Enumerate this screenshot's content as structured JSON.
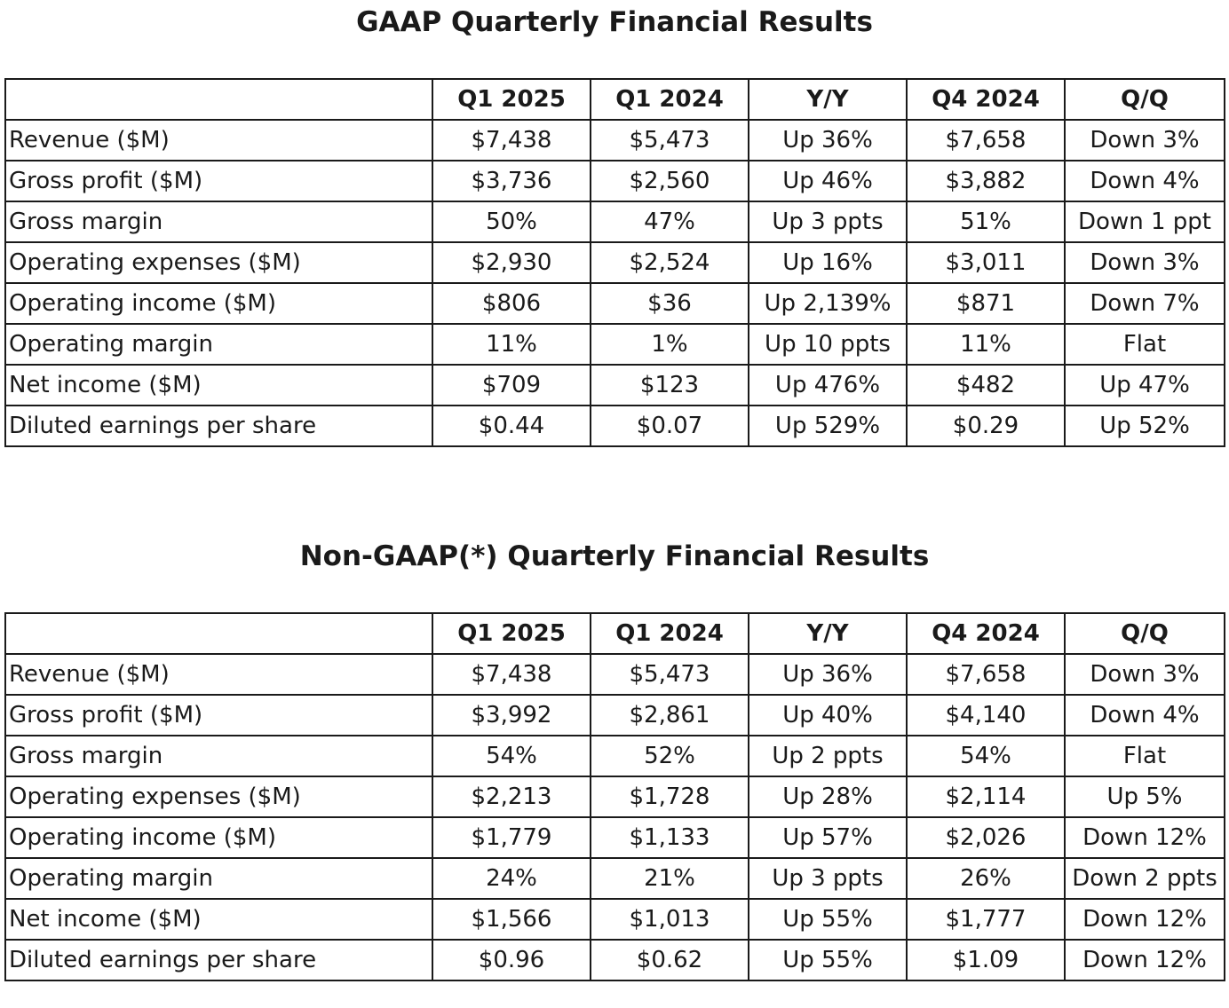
{
  "gaap": {
    "title": "GAAP Quarterly Financial Results",
    "columns": [
      "",
      "Q1 2025",
      "Q1 2024",
      "Y/Y",
      "Q4 2024",
      "Q/Q"
    ],
    "rows": [
      [
        "Revenue ($M)",
        "$7,438",
        "$5,473",
        "Up 36%",
        "$7,658",
        "Down 3%"
      ],
      [
        "Gross profit ($M)",
        "$3,736",
        "$2,560",
        "Up 46%",
        "$3,882",
        "Down 4%"
      ],
      [
        "Gross margin",
        "50%",
        "47%",
        "Up 3 ppts",
        "51%",
        "Down 1 ppt"
      ],
      [
        "Operating expenses ($M)",
        "$2,930",
        "$2,524",
        "Up 16%",
        "$3,011",
        "Down 3%"
      ],
      [
        "Operating income ($M)",
        "$806",
        "$36",
        "Up 2,139%",
        "$871",
        "Down 7%"
      ],
      [
        "Operating margin",
        "11%",
        "1%",
        "Up 10 ppts",
        "11%",
        "Flat"
      ],
      [
        "Net income ($M)",
        "$709",
        "$123",
        "Up 476%",
        "$482",
        "Up 47%"
      ],
      [
        "Diluted earnings per share",
        "$0.44",
        "$0.07",
        "Up 529%",
        "$0.29",
        "Up 52%"
      ]
    ]
  },
  "nongaap": {
    "title": "Non-GAAP(*) Quarterly Financial Results",
    "columns": [
      "",
      "Q1 2025",
      "Q1 2024",
      "Y/Y",
      "Q4 2024",
      "Q/Q"
    ],
    "rows": [
      [
        "Revenue ($M)",
        "$7,438",
        "$5,473",
        "Up 36%",
        "$7,658",
        "Down 3%"
      ],
      [
        "Gross profit ($M)",
        "$3,992",
        "$2,861",
        "Up 40%",
        "$4,140",
        "Down 4%"
      ],
      [
        "Gross margin",
        "54%",
        "52%",
        "Up 2 ppts",
        "54%",
        "Flat"
      ],
      [
        "Operating expenses ($M)",
        "$2,213",
        "$1,728",
        "Up 28%",
        "$2,114",
        "Up 5%"
      ],
      [
        "Operating income ($M)",
        "$1,779",
        "$1,133",
        "Up 57%",
        "$2,026",
        "Down 12%"
      ],
      [
        "Operating margin",
        "24%",
        "21%",
        "Up 3 ppts",
        "26%",
        "Down 2 ppts"
      ],
      [
        "Net income ($M)",
        "$1,566",
        "$1,013",
        "Up 55%",
        "$1,777",
        "Down 12%"
      ],
      [
        "Diluted earnings per share",
        "$0.96",
        "$0.62",
        "Up 55%",
        "$1.09",
        "Down 12%"
      ]
    ]
  }
}
